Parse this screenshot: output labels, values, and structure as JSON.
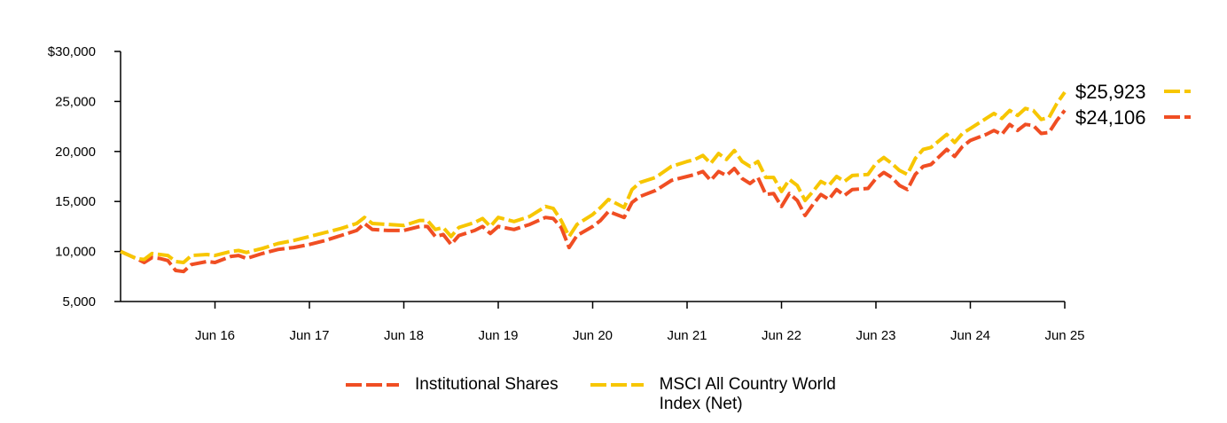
{
  "chart_data": {
    "type": "line",
    "ylim": [
      5000,
      30000
    ],
    "y_ticks": [
      {
        "value": 30000,
        "label": "$30,000"
      },
      {
        "value": 25000,
        "label": "25,000"
      },
      {
        "value": 20000,
        "label": "20,000"
      },
      {
        "value": 15000,
        "label": "15,000"
      },
      {
        "value": 10000,
        "label": "10,000"
      },
      {
        "value": 5000,
        "label": "5,000"
      }
    ],
    "xlim": [
      "2015-06",
      "2025-06"
    ],
    "x_ticks": [
      {
        "date": "2016-06",
        "label": "Jun 16"
      },
      {
        "date": "2017-06",
        "label": "Jun 17"
      },
      {
        "date": "2018-06",
        "label": "Jun 18"
      },
      {
        "date": "2019-06",
        "label": "Jun 19"
      },
      {
        "date": "2020-06",
        "label": "Jun 20"
      },
      {
        "date": "2021-06",
        "label": "Jun 21"
      },
      {
        "date": "2022-06",
        "label": "Jun 22"
      },
      {
        "date": "2023-06",
        "label": "Jun 23"
      },
      {
        "date": "2024-06",
        "label": "Jun 24"
      },
      {
        "date": "2025-06",
        "label": "Jun 25"
      }
    ],
    "grid": false,
    "legend_position": "bottom",
    "series": [
      {
        "name": "Institutional Shares",
        "color": "#F04E23",
        "end_label": "$24,106",
        "points": [
          [
            "2015-06",
            10000
          ],
          [
            "2015-08",
            9300
          ],
          [
            "2015-09",
            8900
          ],
          [
            "2015-10",
            9400
          ],
          [
            "2015-11",
            9300
          ],
          [
            "2015-12",
            9100
          ],
          [
            "2016-01",
            8100
          ],
          [
            "2016-02",
            8000
          ],
          [
            "2016-03",
            8700
          ],
          [
            "2016-05",
            9000
          ],
          [
            "2016-06",
            8900
          ],
          [
            "2016-08",
            9500
          ],
          [
            "2016-09",
            9600
          ],
          [
            "2016-10",
            9300
          ],
          [
            "2016-12",
            9800
          ],
          [
            "2017-02",
            10200
          ],
          [
            "2017-04",
            10400
          ],
          [
            "2017-06",
            10700
          ],
          [
            "2017-08",
            11100
          ],
          [
            "2017-10",
            11600
          ],
          [
            "2017-12",
            12100
          ],
          [
            "2018-01",
            12800
          ],
          [
            "2018-02",
            12200
          ],
          [
            "2018-04",
            12100
          ],
          [
            "2018-06",
            12100
          ],
          [
            "2018-08",
            12500
          ],
          [
            "2018-09",
            12500
          ],
          [
            "2018-10",
            11500
          ],
          [
            "2018-11",
            11700
          ],
          [
            "2018-12",
            10700
          ],
          [
            "2019-01",
            11600
          ],
          [
            "2019-03",
            12100
          ],
          [
            "2019-04",
            12500
          ],
          [
            "2019-05",
            11800
          ],
          [
            "2019-06",
            12500
          ],
          [
            "2019-08",
            12200
          ],
          [
            "2019-10",
            12700
          ],
          [
            "2019-12",
            13400
          ],
          [
            "2020-01",
            13300
          ],
          [
            "2020-02",
            12400
          ],
          [
            "2020-03",
            10400
          ],
          [
            "2020-04",
            11600
          ],
          [
            "2020-06",
            12500
          ],
          [
            "2020-07",
            13100
          ],
          [
            "2020-08",
            14000
          ],
          [
            "2020-10",
            13400
          ],
          [
            "2020-11",
            14900
          ],
          [
            "2020-12",
            15500
          ],
          [
            "2021-02",
            16100
          ],
          [
            "2021-04",
            17100
          ],
          [
            "2021-06",
            17500
          ],
          [
            "2021-07",
            17700
          ],
          [
            "2021-08",
            18000
          ],
          [
            "2021-09",
            17100
          ],
          [
            "2021-10",
            18000
          ],
          [
            "2021-11",
            17600
          ],
          [
            "2021-12",
            18300
          ],
          [
            "2022-01",
            17300
          ],
          [
            "2022-02",
            16800
          ],
          [
            "2022-03",
            17400
          ],
          [
            "2022-04",
            15700
          ],
          [
            "2022-05",
            15800
          ],
          [
            "2022-06",
            14500
          ],
          [
            "2022-07",
            15800
          ],
          [
            "2022-08",
            15100
          ],
          [
            "2022-09",
            13600
          ],
          [
            "2022-10",
            14700
          ],
          [
            "2022-11",
            15700
          ],
          [
            "2022-12",
            15200
          ],
          [
            "2023-01",
            16200
          ],
          [
            "2023-02",
            15600
          ],
          [
            "2023-03",
            16200
          ],
          [
            "2023-05",
            16300
          ],
          [
            "2023-06",
            17300
          ],
          [
            "2023-07",
            17900
          ],
          [
            "2023-08",
            17400
          ],
          [
            "2023-09",
            16600
          ],
          [
            "2023-10",
            16200
          ],
          [
            "2023-11",
            17700
          ],
          [
            "2023-12",
            18500
          ],
          [
            "2024-01",
            18700
          ],
          [
            "2024-03",
            20200
          ],
          [
            "2024-04",
            19500
          ],
          [
            "2024-05",
            20500
          ],
          [
            "2024-06",
            21100
          ],
          [
            "2024-08",
            21700
          ],
          [
            "2024-09",
            22100
          ],
          [
            "2024-10",
            21700
          ],
          [
            "2024-11",
            22700
          ],
          [
            "2024-12",
            22100
          ],
          [
            "2025-01",
            22700
          ],
          [
            "2025-02",
            22600
          ],
          [
            "2025-03",
            21800
          ],
          [
            "2025-04",
            21900
          ],
          [
            "2025-05",
            23100
          ],
          [
            "2025-06",
            24106
          ]
        ]
      },
      {
        "name": "MSCI All Country World Index (Net)",
        "color": "#F7C600",
        "end_label": "$25,923",
        "points": [
          [
            "2015-06",
            10000
          ],
          [
            "2015-08",
            9300
          ],
          [
            "2015-09",
            9200
          ],
          [
            "2015-10",
            9800
          ],
          [
            "2015-11",
            9700
          ],
          [
            "2015-12",
            9600
          ],
          [
            "2016-01",
            9000
          ],
          [
            "2016-02",
            8900
          ],
          [
            "2016-03",
            9600
          ],
          [
            "2016-05",
            9700
          ],
          [
            "2016-06",
            9600
          ],
          [
            "2016-08",
            10000
          ],
          [
            "2016-09",
            10100
          ],
          [
            "2016-10",
            9900
          ],
          [
            "2016-12",
            10300
          ],
          [
            "2017-02",
            10800
          ],
          [
            "2017-04",
            11100
          ],
          [
            "2017-06",
            11500
          ],
          [
            "2017-08",
            11900
          ],
          [
            "2017-10",
            12300
          ],
          [
            "2017-12",
            12800
          ],
          [
            "2018-01",
            13400
          ],
          [
            "2018-02",
            12800
          ],
          [
            "2018-04",
            12700
          ],
          [
            "2018-06",
            12600
          ],
          [
            "2018-08",
            13100
          ],
          [
            "2018-09",
            13100
          ],
          [
            "2018-10",
            12200
          ],
          [
            "2018-11",
            12400
          ],
          [
            "2018-12",
            11500
          ],
          [
            "2019-01",
            12400
          ],
          [
            "2019-03",
            12900
          ],
          [
            "2019-04",
            13300
          ],
          [
            "2019-05",
            12500
          ],
          [
            "2019-06",
            13400
          ],
          [
            "2019-08",
            13000
          ],
          [
            "2019-10",
            13500
          ],
          [
            "2019-12",
            14500
          ],
          [
            "2020-01",
            14300
          ],
          [
            "2020-02",
            13100
          ],
          [
            "2020-03",
            11500
          ],
          [
            "2020-04",
            12700
          ],
          [
            "2020-06",
            13700
          ],
          [
            "2020-07",
            14400
          ],
          [
            "2020-08",
            15200
          ],
          [
            "2020-10",
            14400
          ],
          [
            "2020-11",
            16200
          ],
          [
            "2020-12",
            16900
          ],
          [
            "2021-02",
            17400
          ],
          [
            "2021-04",
            18500
          ],
          [
            "2021-06",
            19000
          ],
          [
            "2021-07",
            19200
          ],
          [
            "2021-08",
            19600
          ],
          [
            "2021-09",
            18800
          ],
          [
            "2021-10",
            19800
          ],
          [
            "2021-11",
            19200
          ],
          [
            "2021-12",
            20100
          ],
          [
            "2022-01",
            19000
          ],
          [
            "2022-02",
            18500
          ],
          [
            "2022-03",
            19000
          ],
          [
            "2022-04",
            17400
          ],
          [
            "2022-05",
            17400
          ],
          [
            "2022-06",
            16000
          ],
          [
            "2022-07",
            17200
          ],
          [
            "2022-08",
            16600
          ],
          [
            "2022-09",
            15100
          ],
          [
            "2022-10",
            16000
          ],
          [
            "2022-11",
            17000
          ],
          [
            "2022-12",
            16600
          ],
          [
            "2023-01",
            17500
          ],
          [
            "2023-02",
            17000
          ],
          [
            "2023-03",
            17600
          ],
          [
            "2023-05",
            17700
          ],
          [
            "2023-06",
            18800
          ],
          [
            "2023-07",
            19400
          ],
          [
            "2023-08",
            18800
          ],
          [
            "2023-09",
            18100
          ],
          [
            "2023-10",
            17700
          ],
          [
            "2023-11",
            19300
          ],
          [
            "2023-12",
            20200
          ],
          [
            "2024-01",
            20400
          ],
          [
            "2024-03",
            21700
          ],
          [
            "2024-04",
            20900
          ],
          [
            "2024-05",
            21800
          ],
          [
            "2024-06",
            22300
          ],
          [
            "2024-08",
            23300
          ],
          [
            "2024-09",
            23800
          ],
          [
            "2024-10",
            23300
          ],
          [
            "2024-11",
            24100
          ],
          [
            "2024-12",
            23600
          ],
          [
            "2025-01",
            24300
          ],
          [
            "2025-02",
            24100
          ],
          [
            "2025-03",
            23200
          ],
          [
            "2025-04",
            23400
          ],
          [
            "2025-05",
            24800
          ],
          [
            "2025-06",
            25923
          ]
        ]
      }
    ]
  }
}
